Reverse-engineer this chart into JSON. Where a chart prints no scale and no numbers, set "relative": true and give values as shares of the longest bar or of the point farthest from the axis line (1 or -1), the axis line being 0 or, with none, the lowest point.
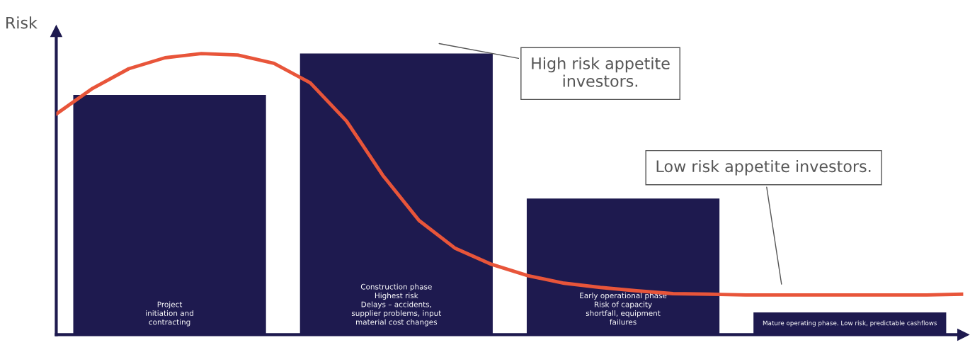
{
  "chart_data": [
    {
      "type": "bar",
      "relative": true,
      "tick_labels": false,
      "categories": [
        "Project\ninitiation and\ncontracting",
        "Construction phase\nHighest risk\nDelays – accidents,\nsupplier problems, input\nmaterial cost changes",
        "Early operational phase\nRisk of capacity\nshortfall, equipment\nfailures",
        "Mature operating phase. Low risk, predictable cashflows"
      ],
      "color": "#1e1a4f",
      "values": [
        0.853,
        1.0,
        0.484,
        0.079
      ]
    },
    {
      "type": "line",
      "relative": true,
      "ylabel": "Risk",
      "tick_labels": false,
      "categories": [
        null,
        null,
        null,
        null,
        null,
        null,
        null,
        null,
        null,
        null,
        null,
        null,
        null,
        null,
        null,
        null,
        null,
        null,
        null,
        null,
        null,
        null,
        null,
        null,
        null,
        null
      ],
      "color": "#e8553a",
      "values": [
        0.785,
        0.876,
        0.946,
        0.985,
        1.0,
        0.995,
        0.965,
        0.896,
        0.76,
        0.567,
        0.406,
        0.307,
        0.25,
        0.21,
        0.183,
        0.168,
        0.156,
        0.146,
        0.144,
        0.141,
        0.141,
        0.141,
        0.141,
        0.141,
        0.141,
        0.144
      ],
      "annotations": [
        "High risk appetite\ninvestors.",
        "Low risk appetite investors."
      ]
    }
  ]
}
